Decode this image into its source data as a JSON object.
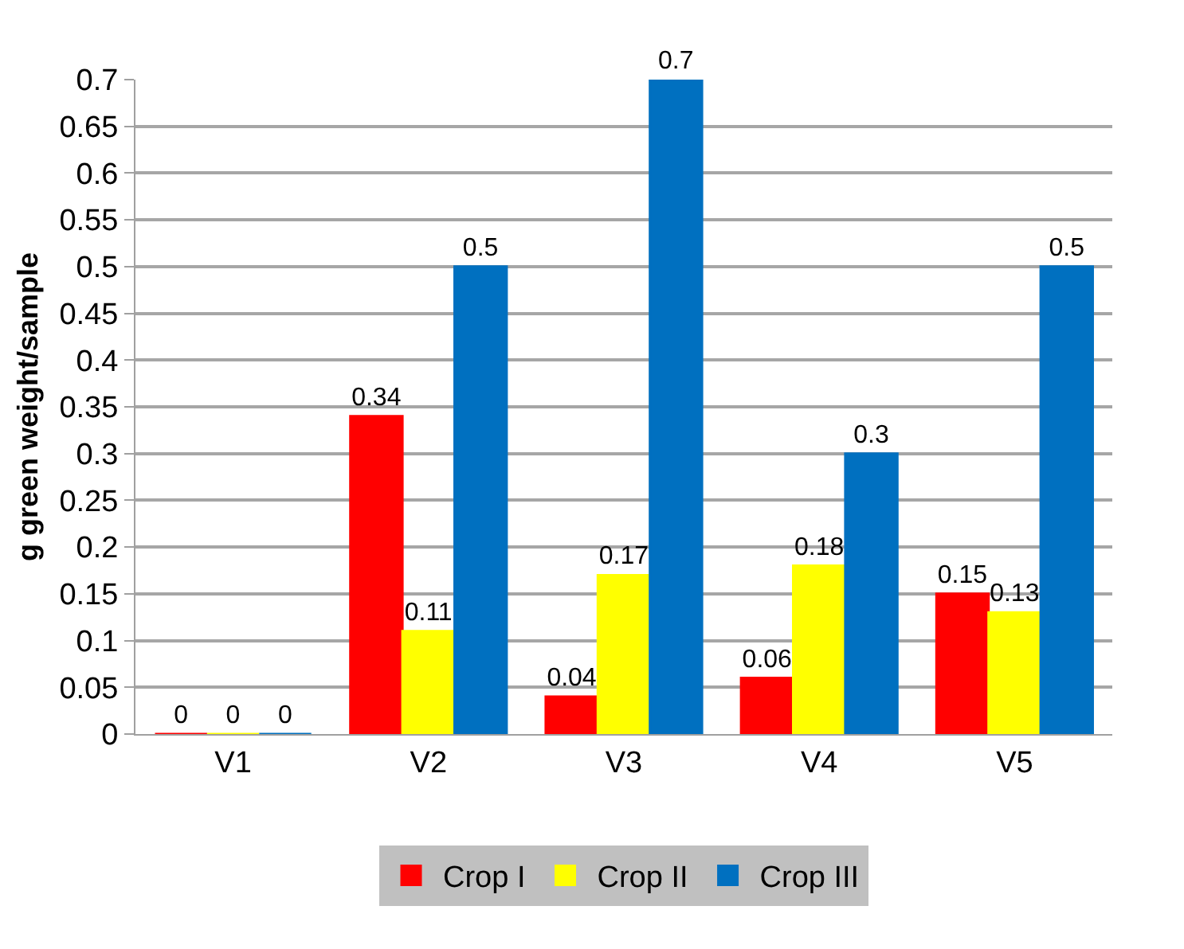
{
  "chart_data": {
    "type": "bar",
    "ylabel": "g green weight/sample",
    "categories": [
      "V1",
      "V2",
      "V3",
      "V4",
      "V5"
    ],
    "series": [
      {
        "name": "Crop I",
        "color": "#ff0000",
        "values": [
          0,
          0.34,
          0.04,
          0.06,
          0.15
        ]
      },
      {
        "name": "Crop II",
        "color": "#ffff00",
        "values": [
          0,
          0.11,
          0.17,
          0.18,
          0.13
        ]
      },
      {
        "name": "Crop III",
        "color": "#0070c0",
        "values": [
          0,
          0.5,
          0.7,
          0.3,
          0.5
        ]
      }
    ],
    "ylim": [
      0,
      0.7
    ],
    "yticks": [
      0,
      0.05,
      0.1,
      0.15,
      0.2,
      0.25,
      0.3,
      0.35,
      0.4,
      0.45,
      0.5,
      0.55,
      0.6,
      0.65,
      0.7
    ],
    "grid": "y",
    "legend": "bottom",
    "data_labels": true
  }
}
